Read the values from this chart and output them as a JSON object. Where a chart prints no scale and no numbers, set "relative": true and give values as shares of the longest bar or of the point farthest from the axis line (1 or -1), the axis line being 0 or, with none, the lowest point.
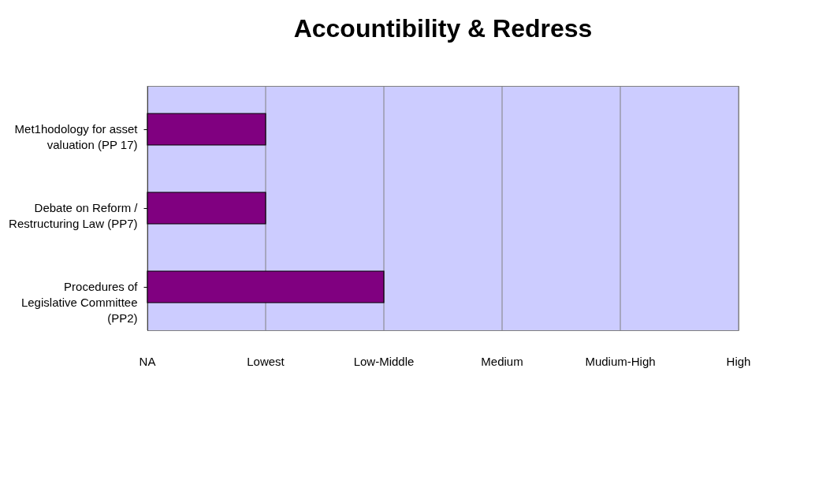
{
  "chart_data": {
    "type": "bar",
    "title": "Accountibility & Redress",
    "orientation": "horizontal",
    "relative": true,
    "categories": [
      "Met1hodology for asset valuation (PP 17)",
      "Debate on Reform / Restructuring Law (PP7)",
      "Procedures of Legislative Committee (PP2)"
    ],
    "values": [
      0.5,
      0.5,
      1
    ],
    "color": "#800080",
    "ref_lines": [
      {
        "axis": "x",
        "value": 0,
        "label": "NA",
        "color": "#808080"
      },
      {
        "axis": "x",
        "value": 0.5,
        "label": "Lowest",
        "color": "#808080"
      },
      {
        "axis": "x",
        "value": 1,
        "label": "Low-Middle",
        "color": "#808080"
      },
      {
        "axis": "x",
        "value": 1.5,
        "label": "Medium",
        "color": "#808080"
      },
      {
        "axis": "x",
        "value": 2,
        "label": "Mudium-High",
        "color": "#808080"
      },
      {
        "axis": "x",
        "value": 2.5,
        "label": "High",
        "color": "#808080"
      }
    ]
  }
}
